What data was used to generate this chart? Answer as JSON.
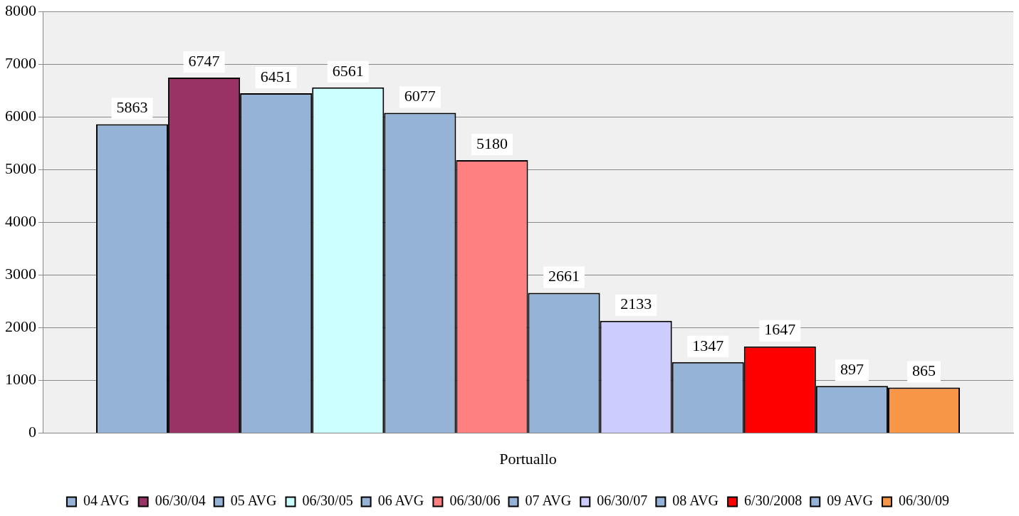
{
  "chart_data": {
    "type": "bar",
    "categories": [
      "Portuallo"
    ],
    "series": [
      {
        "name": "04 AVG",
        "color": "#95b3d7",
        "values": [
          5863
        ]
      },
      {
        "name": "06/30/04",
        "color": "#993366",
        "values": [
          6747
        ]
      },
      {
        "name": "05 AVG",
        "color": "#95b3d7",
        "values": [
          6451
        ]
      },
      {
        "name": "06/30/05",
        "color": "#ccffff",
        "values": [
          6561
        ]
      },
      {
        "name": "06 AVG",
        "color": "#95b3d7",
        "values": [
          6077
        ]
      },
      {
        "name": "06/30/06",
        "color": "#ff8080",
        "values": [
          5180
        ]
      },
      {
        "name": "07 AVG",
        "color": "#95b3d7",
        "values": [
          2661
        ]
      },
      {
        "name": "06/30/07",
        "color": "#ccccff",
        "values": [
          2133
        ]
      },
      {
        "name": "08 AVG",
        "color": "#95b3d7",
        "values": [
          1347
        ]
      },
      {
        "name": "6/30/2008",
        "color": "#ff0000",
        "values": [
          1647
        ]
      },
      {
        "name": "09 AVG",
        "color": "#95b3d7",
        "values": [
          897
        ]
      },
      {
        "name": "06/30/09",
        "color": "#f79646",
        "values": [
          865
        ]
      }
    ],
    "ylim": [
      0,
      8000
    ],
    "yticks": [
      0,
      1000,
      2000,
      3000,
      4000,
      5000,
      6000,
      7000,
      8000
    ],
    "grid": "y",
    "legend": "bottom",
    "data_labels": true
  }
}
